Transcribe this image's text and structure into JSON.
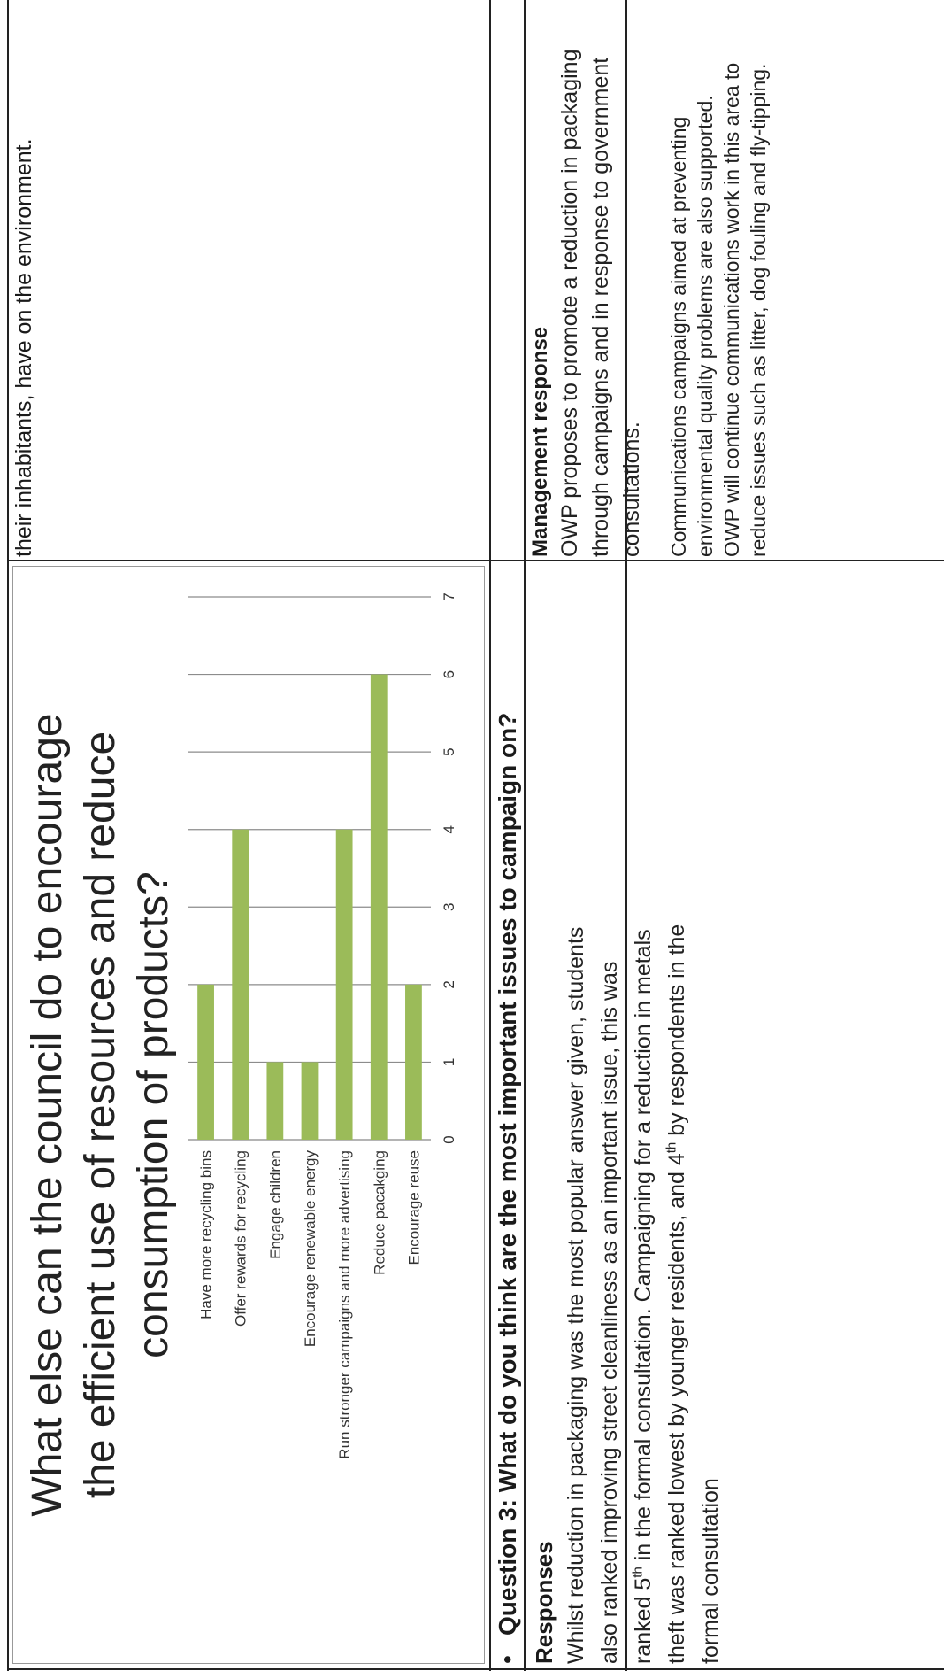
{
  "top_right_cell": {
    "text": "their inhabitants, have on the environment."
  },
  "chart_data": {
    "type": "bar",
    "orientation": "horizontal",
    "title_lines": [
      "What else can the council do to encourage",
      "the efficient use of resources and reduce",
      "consumption of products?"
    ],
    "categories": [
      "Have more recycling bins",
      "Offer rewards for recycling",
      "Engage children",
      "Encourage renewable energy",
      "Run stronger campaigns and more advertising",
      "Reduce pacakging",
      "Encourage reuse"
    ],
    "values": [
      2,
      4,
      1,
      1,
      4,
      6,
      2
    ],
    "xlim": [
      0,
      7
    ],
    "ticks": [
      "0",
      "1",
      "2",
      "3",
      "4",
      "5",
      "6",
      "7"
    ],
    "grid": true,
    "bar_color": "#9bbb59"
  },
  "question": {
    "bullet": "•",
    "heading": "Question 3: What do you think are the most important issues to campaign on?"
  },
  "responses": {
    "heading": "Responses",
    "line1": "Whilst reduction in packaging was the most popular answer given, students",
    "line2": "also ranked improving street cleanliness as an important issue, this was",
    "line3_a": "ranked 5",
    "line3_sup": "th",
    "line3_b": " in the formal consultation.  Campaigning for a reduction in metals",
    "line4_a": "theft was ranked lowest by younger residents, and 4",
    "line4_sup": "th",
    "line4_b": " by respondents in the",
    "line5": "formal consultation"
  },
  "management": {
    "heading": "Management response",
    "p1_line1": "OWP proposes to promote a reduction in packaging",
    "p1_line2": "through campaigns and in response to government",
    "p1_line3": "consultations.",
    "p2_line1": "Communications campaigns aimed at preventing",
    "p2_line2": "environmental quality problems are also supported.",
    "p2_line3": "OWP will continue communications work in this area to",
    "p2_line4": "reduce issues such as litter, dog fouling and fly-tipping."
  }
}
